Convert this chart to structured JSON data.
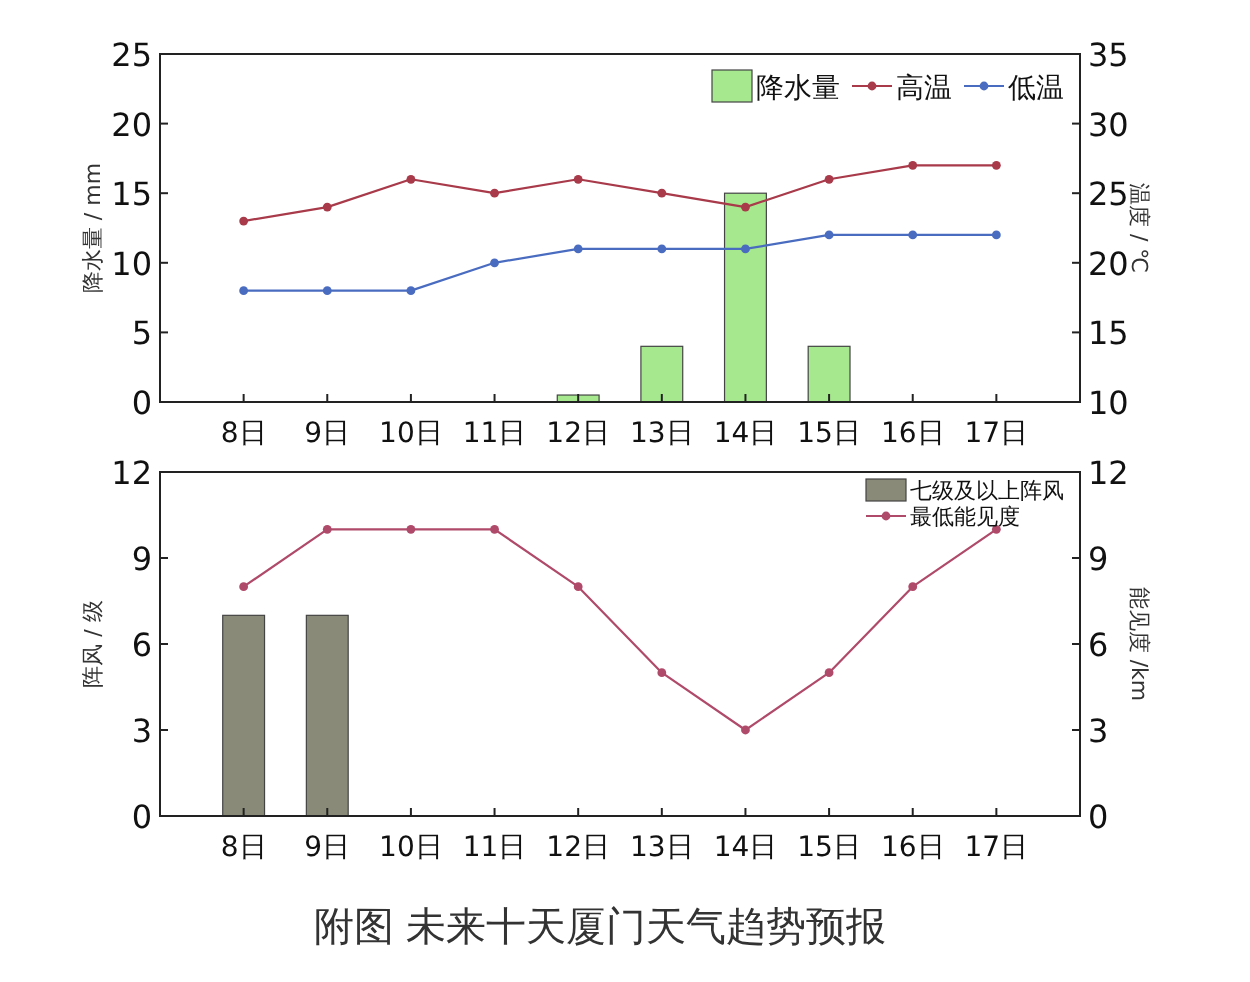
{
  "chart_data": [
    {
      "type": "bar",
      "categories": [
        "8日",
        "9日",
        "10日",
        "11日",
        "12日",
        "13日",
        "14日",
        "15日",
        "16日",
        "17日"
      ],
      "ylabel": "降水量 / mm",
      "y2label": "温度 / ℃",
      "ylim": [
        0,
        25
      ],
      "yticks": [
        0,
        5,
        10,
        15,
        20,
        25
      ],
      "y2lim": [
        10,
        35
      ],
      "y2ticks": [
        10,
        15,
        20,
        25,
        30,
        35
      ],
      "legend": "top right",
      "marker": "circle",
      "series": [
        {
          "name": "降水量",
          "color": "#a6e88e",
          "values": [
            0,
            0,
            0,
            0,
            0.5,
            4,
            15,
            4,
            0,
            0
          ]
        },
        {
          "name": "高温",
          "type": "line",
          "axis": "y2",
          "color": "#a83a4a",
          "values": [
            23,
            24,
            26,
            25,
            26,
            25,
            24,
            26,
            27,
            27
          ]
        },
        {
          "name": "低温",
          "type": "line",
          "axis": "y2",
          "color": "#4a6cc0",
          "values": [
            18,
            18,
            18,
            20,
            21,
            21,
            21,
            22,
            22,
            22
          ]
        }
      ]
    },
    {
      "type": "bar",
      "categories": [
        "8日",
        "9日",
        "10日",
        "11日",
        "12日",
        "13日",
        "14日",
        "15日",
        "16日",
        "17日"
      ],
      "ylabel": "阵风 / 级",
      "y2label": "能见度 /km",
      "ylim": [
        0,
        12
      ],
      "yticks": [
        0,
        3,
        6,
        9,
        12
      ],
      "y2lim": [
        0,
        12
      ],
      "y2ticks": [
        0,
        3,
        6,
        9,
        12
      ],
      "legend": "top right",
      "marker": "circle",
      "annotations": [
        "附图  未来十天厦门天气趋势预报"
      ],
      "series": [
        {
          "name": "七级及以上阵风",
          "color": "#8a8a78",
          "values": [
            7,
            7,
            0,
            0,
            0,
            0,
            0,
            0,
            0,
            0
          ]
        },
        {
          "name": "最低能见度",
          "type": "line",
          "axis": "y2",
          "color": "#b04a6a",
          "values": [
            8,
            10,
            10,
            10,
            8,
            5,
            3,
            5,
            8,
            10
          ]
        }
      ]
    }
  ]
}
